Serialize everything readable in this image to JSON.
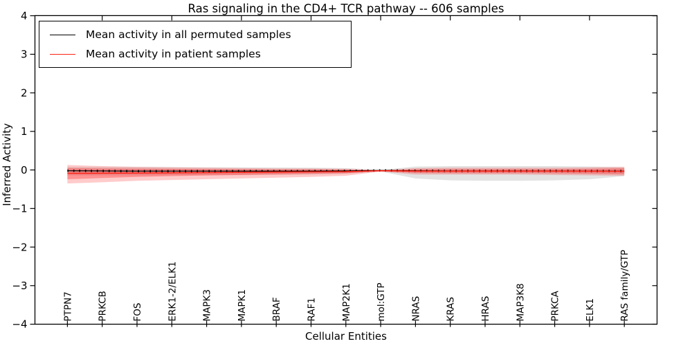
{
  "chart_data": {
    "type": "line",
    "title": "Ras signaling in the CD4+ TCR pathway -- 606 samples",
    "xlabel": "Cellular Entities",
    "ylabel": "Inferred Activity",
    "ylim": [
      -4,
      4
    ],
    "yticks": [
      -4,
      -3,
      -2,
      -1,
      0,
      1,
      2,
      3,
      4
    ],
    "ytick_labels": [
      "−4",
      "−3",
      "−2",
      "−1",
      "0",
      "1",
      "2",
      "3",
      "4"
    ],
    "grid": false,
    "legend_position": "upper left",
    "x_categories": [
      "PTPN7",
      "PRKCB",
      "FOS",
      "ERK1-2/ELK1",
      "MAPK3",
      "MAPK1",
      "BRAF",
      "RAF1",
      "MAP2K1",
      "mol:GTP",
      "NRAS",
      "KRAS",
      "HRAS",
      "MAP3K8",
      "PRKCA",
      "ELK1",
      "RAS family/GTP"
    ],
    "series": {
      "permuted": {
        "name": "Mean activity in all permuted samples",
        "color": "#000000",
        "band_color": "#404040",
        "band_opacity": 0.15,
        "mean": [
          -0.02,
          -0.025,
          -0.03,
          -0.03,
          -0.03,
          -0.03,
          -0.03,
          -0.03,
          -0.025,
          -0.012,
          -0.02,
          -0.025,
          -0.025,
          -0.025,
          -0.025,
          -0.028,
          -0.03
        ],
        "band_upper": [
          0.08,
          0.08,
          0.08,
          0.075,
          0.07,
          0.07,
          0.065,
          0.06,
          0.05,
          -0.003,
          0.09,
          0.1,
          0.1,
          0.1,
          0.1,
          0.09,
          0.07
        ],
        "band_lower": [
          -0.14,
          -0.14,
          -0.14,
          -0.135,
          -0.13,
          -0.13,
          -0.125,
          -0.12,
          -0.1,
          -0.04,
          -0.22,
          -0.27,
          -0.28,
          -0.28,
          -0.27,
          -0.24,
          -0.16
        ]
      },
      "patient": {
        "name": "Mean activity in patient samples",
        "color": "#fb2416",
        "band_color": "#ff1212",
        "outer_opacity": 0.22,
        "inner_opacity": 0.3,
        "mean": [
          -0.088,
          -0.085,
          -0.08,
          -0.075,
          -0.07,
          -0.062,
          -0.055,
          -0.05,
          -0.045,
          -0.02,
          -0.03,
          -0.03,
          -0.03,
          -0.03,
          -0.03,
          -0.033,
          -0.035
        ],
        "band_outer_upper": [
          0.13,
          0.1,
          0.08,
          0.07,
          0.06,
          0.05,
          0.04,
          0.04,
          0.03,
          -0.005,
          0.05,
          0.06,
          0.06,
          0.06,
          0.06,
          0.07,
          0.08
        ],
        "band_outer_lower": [
          -0.35,
          -0.32,
          -0.28,
          -0.26,
          -0.24,
          -0.22,
          -0.2,
          -0.18,
          -0.15,
          -0.04,
          -0.12,
          -0.12,
          -0.12,
          -0.12,
          -0.13,
          -0.14,
          -0.15
        ],
        "band_inner_upper": [
          0.05,
          0.04,
          0.035,
          0.03,
          0.025,
          0.02,
          0.015,
          0.015,
          0.01,
          -0.01,
          0.02,
          0.025,
          0.025,
          0.025,
          0.025,
          0.03,
          0.045
        ],
        "band_inner_lower": [
          -0.24,
          -0.21,
          -0.18,
          -0.16,
          -0.145,
          -0.13,
          -0.115,
          -0.1,
          -0.085,
          -0.03,
          -0.08,
          -0.085,
          -0.085,
          -0.085,
          -0.09,
          -0.1,
          -0.11
        ]
      }
    }
  }
}
